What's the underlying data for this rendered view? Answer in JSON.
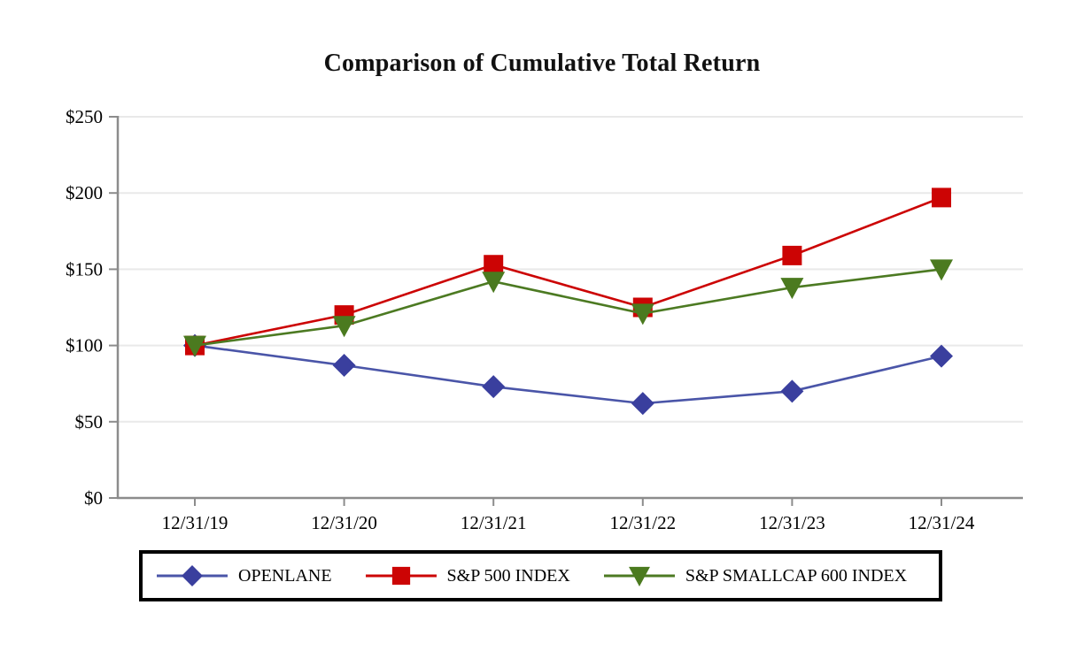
{
  "chart_data": {
    "type": "line",
    "title": "Comparison of Cumulative Total Return",
    "categories": [
      "12/31/19",
      "12/31/20",
      "12/31/21",
      "12/31/22",
      "12/31/23",
      "12/31/24"
    ],
    "series": [
      {
        "name": "OPENLANE",
        "marker": "diamond",
        "color": "#3A3F9E",
        "line_color": "#4A55A8",
        "values": [
          100,
          87,
          73,
          62,
          70,
          93
        ]
      },
      {
        "name": "S&P 500 INDEX",
        "marker": "square",
        "color": "#CC0404",
        "line_color": "#CC0404",
        "values": [
          100,
          120,
          153,
          125,
          159,
          197
        ]
      },
      {
        "name": "S&P SMALLCAP 600 INDEX",
        "marker": "triangle-down",
        "color": "#4B7A1F",
        "line_color": "#4C7A22",
        "values": [
          100,
          113,
          142,
          121,
          138,
          150
        ]
      }
    ],
    "y_axis": {
      "tick_labels": [
        "$0",
        "$50",
        "$100",
        "$150",
        "$200",
        "$250"
      ],
      "tick_values": [
        0,
        50,
        100,
        150,
        200,
        250
      ],
      "min": 0,
      "max": 250
    },
    "xlabel": "",
    "ylabel": "",
    "grid": true,
    "legend_position": "bottom",
    "colors": {
      "axis": "#8C8C8C",
      "gridline": "#E9E9E9",
      "text": "#000000",
      "background": "#FFFFFF",
      "legend_border": "#000000"
    }
  }
}
